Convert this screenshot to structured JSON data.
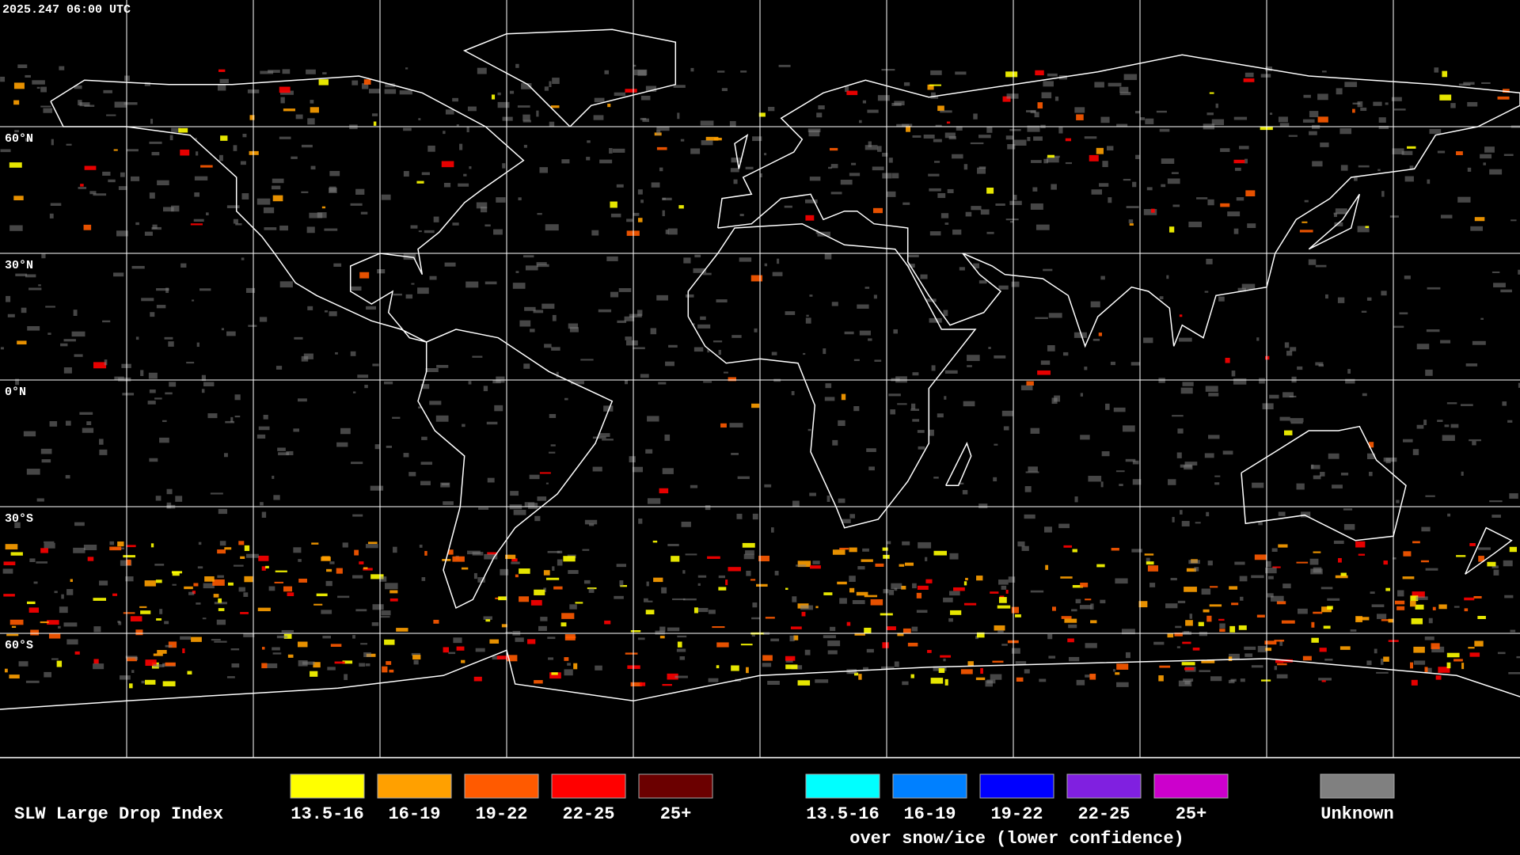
{
  "timestamp": "2025.247 06:00 UTC",
  "latitude_labels": [
    "60°N",
    "30°N",
    "0°N",
    "30°S",
    "60°S"
  ],
  "legend": {
    "title": "SLW Large Drop Index",
    "groups": [
      {
        "items": [
          {
            "label": "13.5-16",
            "color": "#ffff00"
          },
          {
            "label": "16-19",
            "color": "#ffa000"
          },
          {
            "label": "19-22",
            "color": "#ff5a00"
          },
          {
            "label": "22-25",
            "color": "#ff0000"
          },
          {
            "label": "25+",
            "color": "#6b0000"
          }
        ]
      },
      {
        "items": [
          {
            "label": "13.5-16",
            "color": "#00ffff"
          },
          {
            "label": "16-19",
            "color": "#0080ff"
          },
          {
            "label": "19-22",
            "color": "#0000ff"
          },
          {
            "label": "22-25",
            "color": "#8020e0"
          },
          {
            "label": "25+",
            "color": "#cc00cc"
          }
        ],
        "caption": "over snow/ice (lower confidence)"
      }
    ],
    "unknown": {
      "label": "Unknown",
      "color": "#808080"
    }
  }
}
